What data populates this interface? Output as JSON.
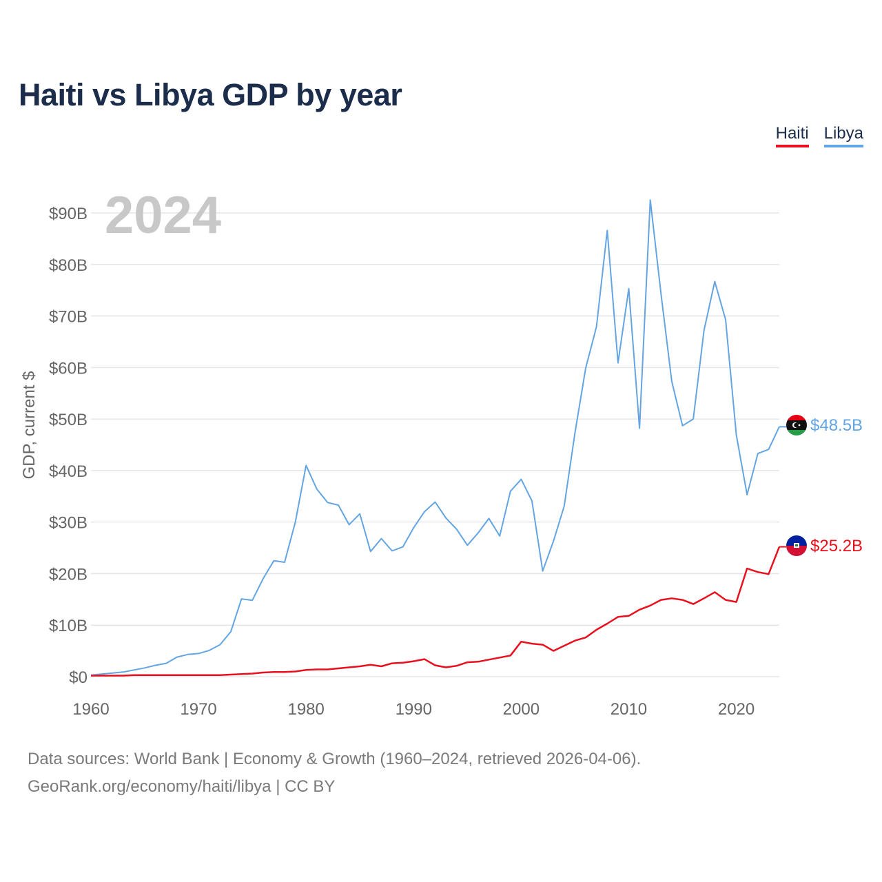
{
  "title": "Haiti vs Libya GDP by year",
  "legend": {
    "haiti": "Haiti",
    "libya": "Libya"
  },
  "year_label": "2024",
  "footer": {
    "line1": "Data sources: World Bank | Economy & Growth (1960–2024, retrieved 2026-04-06).",
    "line2": "GeoRank.org/economy/haiti/libya | CC BY"
  },
  "colors": {
    "haiti": "#e8101c",
    "libya": "#63a4e2",
    "grid": "#e6e6e6",
    "axis_text": "#666666",
    "year": "#c8c8c8"
  },
  "chart_data": {
    "type": "line",
    "title": "Haiti vs Libya GDP by year",
    "xlabel": "",
    "ylabel": "GDP, current $",
    "xlim": [
      1960,
      2024
    ],
    "ylim": [
      0,
      90
    ],
    "x_ticks": [
      1960,
      1970,
      1980,
      1990,
      2000,
      2010,
      2020
    ],
    "y_ticks": [
      0,
      10,
      20,
      30,
      40,
      50,
      60,
      70,
      80,
      90
    ],
    "y_tick_labels": [
      "$0",
      "$10B",
      "$20B",
      "$30B",
      "$40B",
      "$50B",
      "$60B",
      "$70B",
      "$80B",
      "$90B"
    ],
    "grid": true,
    "years": [
      1960,
      1961,
      1962,
      1963,
      1964,
      1965,
      1966,
      1967,
      1968,
      1969,
      1970,
      1971,
      1972,
      1973,
      1974,
      1975,
      1976,
      1977,
      1978,
      1979,
      1980,
      1981,
      1982,
      1983,
      1984,
      1985,
      1986,
      1987,
      1988,
      1989,
      1990,
      1991,
      1992,
      1993,
      1994,
      1995,
      1996,
      1997,
      1998,
      1999,
      2000,
      2001,
      2002,
      2003,
      2004,
      2005,
      2006,
      2007,
      2008,
      2009,
      2010,
      2011,
      2012,
      2013,
      2014,
      2015,
      2016,
      2017,
      2018,
      2019,
      2020,
      2021,
      2022,
      2023,
      2024
    ],
    "series": [
      {
        "name": "Libya",
        "end_label": "$48.5B",
        "values": [
          0.3,
          0.5,
          0.7,
          0.9,
          1.3,
          1.7,
          2.2,
          2.6,
          3.8,
          4.3,
          4.5,
          5.1,
          6.2,
          8.7,
          15.1,
          14.8,
          19.0,
          22.5,
          22.2,
          30.0,
          41.0,
          36.4,
          33.8,
          33.3,
          29.5,
          31.6,
          24.3,
          26.8,
          24.4,
          25.2,
          28.9,
          32.0,
          33.9,
          30.8,
          28.6,
          25.5,
          27.9,
          30.7,
          27.3,
          36.0,
          38.3,
          34.1,
          20.5,
          26.3,
          33.1,
          47.3,
          59.9,
          67.9,
          86.6,
          60.9,
          75.3,
          48.2,
          92.5,
          74.3,
          57.3,
          48.7,
          50.0,
          67.2,
          76.7,
          69.3,
          46.9,
          35.3,
          43.3,
          44.1,
          48.5
        ]
      },
      {
        "name": "Haiti",
        "end_label": "$25.2B",
        "values": [
          0.2,
          0.2,
          0.2,
          0.2,
          0.3,
          0.3,
          0.3,
          0.3,
          0.3,
          0.3,
          0.3,
          0.3,
          0.3,
          0.4,
          0.5,
          0.6,
          0.8,
          0.9,
          0.9,
          1.0,
          1.3,
          1.4,
          1.4,
          1.6,
          1.8,
          2.0,
          2.3,
          2.0,
          2.6,
          2.7,
          3.0,
          3.4,
          2.2,
          1.8,
          2.1,
          2.8,
          2.9,
          3.3,
          3.7,
          4.1,
          6.8,
          6.4,
          6.2,
          5.0,
          6.0,
          7.0,
          7.6,
          9.1,
          10.3,
          11.6,
          11.8,
          13.0,
          13.8,
          14.9,
          15.2,
          14.9,
          14.1,
          15.2,
          16.4,
          14.9,
          14.5,
          21.0,
          20.3,
          19.9,
          25.2
        ]
      }
    ]
  }
}
